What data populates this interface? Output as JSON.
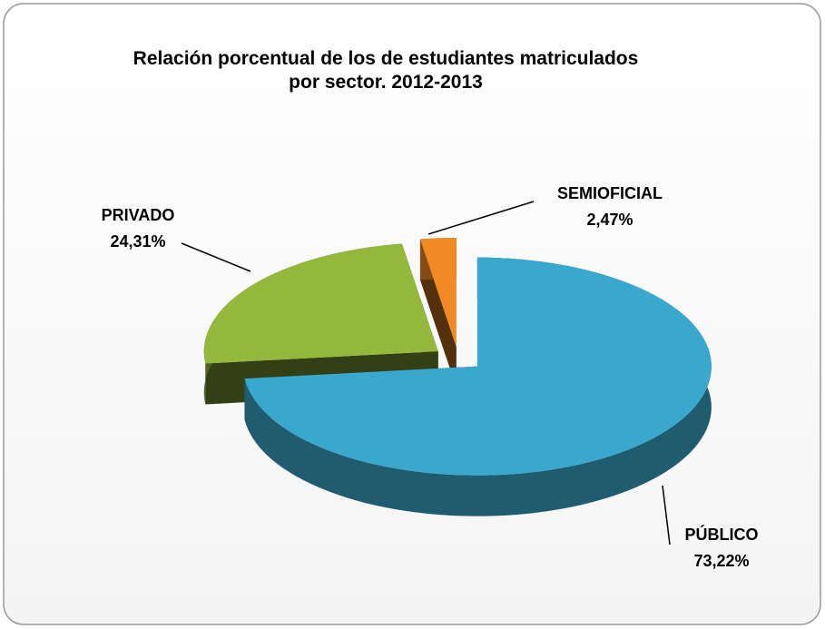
{
  "chart_data": {
    "type": "pie3d",
    "title": "Relación porcentual de los de estudiantes matriculados por sector. 2012-2013",
    "categories": [
      "PÚBLICO",
      "PRIVADO",
      "SEMIOFICIAL"
    ],
    "values": [
      73.22,
      24.31,
      2.47
    ],
    "value_labels": [
      "73,22%",
      "24,31%",
      "2,47%"
    ],
    "colors": [
      "#3aa8cc",
      "#93b83c",
      "#f08a24"
    ]
  }
}
